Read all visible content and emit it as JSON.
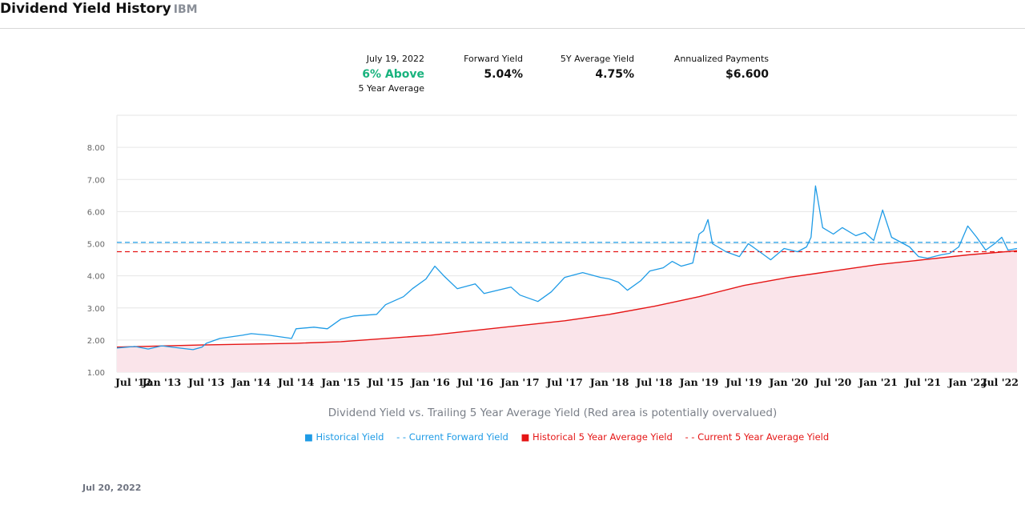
{
  "header": {
    "title": "Dividend Yield History",
    "ticker": "IBM"
  },
  "stats": {
    "date": "July 19, 2022",
    "vs_average": "6% Above",
    "vs_average_sub": "5 Year Average",
    "forward_yield_label": "Forward Yield",
    "forward_yield": "5.04%",
    "avg5y_label": "5Y Average Yield",
    "avg5y": "4.75%",
    "annualized_label": "Annualized Payments",
    "annualized": "$6.600"
  },
  "colors": {
    "historical": "#1e9be6",
    "average": "#e51515",
    "area": "#fae4ea",
    "positive": "#19b37e"
  },
  "chart_data": {
    "type": "line",
    "x_ticks": [
      "Jul '12",
      "Jan '13",
      "Jul '13",
      "Jan '14",
      "Jul '14",
      "Jan '15",
      "Jul '15",
      "Jan '16",
      "Jul '16",
      "Jan '17",
      "Jul '17",
      "Jan '18",
      "Jul '18",
      "Jan '19",
      "Jul '19",
      "Jan '20",
      "Jul '20",
      "Jan '21",
      "Jul '21",
      "Jan '22",
      "Jul '22"
    ],
    "y_ticks": [
      "1.00",
      "2.00",
      "3.00",
      "4.00",
      "5.00",
      "6.00",
      "7.00",
      "8.00"
    ],
    "ylim": [
      1,
      9
    ],
    "xlim": [
      2012.5,
      2022.55
    ],
    "series": [
      {
        "name": "Historical Yield",
        "style": "line",
        "color": "#1e9be6",
        "points": [
          [
            2012.5,
            1.75
          ],
          [
            2012.7,
            1.8
          ],
          [
            2012.85,
            1.72
          ],
          [
            2013.0,
            1.82
          ],
          [
            2013.2,
            1.75
          ],
          [
            2013.35,
            1.7
          ],
          [
            2013.45,
            1.78
          ],
          [
            2013.5,
            1.9
          ],
          [
            2013.65,
            2.05
          ],
          [
            2013.9,
            2.15
          ],
          [
            2014.0,
            2.2
          ],
          [
            2014.2,
            2.15
          ],
          [
            2014.45,
            2.05
          ],
          [
            2014.5,
            2.35
          ],
          [
            2014.7,
            2.4
          ],
          [
            2014.85,
            2.35
          ],
          [
            2015.0,
            2.65
          ],
          [
            2015.15,
            2.75
          ],
          [
            2015.4,
            2.8
          ],
          [
            2015.5,
            3.1
          ],
          [
            2015.7,
            3.35
          ],
          [
            2015.8,
            3.6
          ],
          [
            2015.95,
            3.9
          ],
          [
            2016.05,
            4.3
          ],
          [
            2016.15,
            4.0
          ],
          [
            2016.3,
            3.6
          ],
          [
            2016.5,
            3.75
          ],
          [
            2016.6,
            3.45
          ],
          [
            2016.9,
            3.65
          ],
          [
            2017.0,
            3.4
          ],
          [
            2017.2,
            3.2
          ],
          [
            2017.35,
            3.5
          ],
          [
            2017.5,
            3.95
          ],
          [
            2017.7,
            4.1
          ],
          [
            2017.9,
            3.95
          ],
          [
            2018.0,
            3.9
          ],
          [
            2018.1,
            3.8
          ],
          [
            2018.2,
            3.55
          ],
          [
            2018.35,
            3.85
          ],
          [
            2018.45,
            4.15
          ],
          [
            2018.6,
            4.25
          ],
          [
            2018.7,
            4.45
          ],
          [
            2018.8,
            4.3
          ],
          [
            2018.93,
            4.4
          ],
          [
            2019.0,
            5.3
          ],
          [
            2019.05,
            5.4
          ],
          [
            2019.1,
            5.75
          ],
          [
            2019.15,
            5.0
          ],
          [
            2019.3,
            4.75
          ],
          [
            2019.45,
            4.6
          ],
          [
            2019.55,
            5.0
          ],
          [
            2019.7,
            4.7
          ],
          [
            2019.8,
            4.5
          ],
          [
            2019.95,
            4.85
          ],
          [
            2020.1,
            4.75
          ],
          [
            2020.2,
            4.9
          ],
          [
            2020.25,
            5.2
          ],
          [
            2020.3,
            6.8
          ],
          [
            2020.38,
            5.5
          ],
          [
            2020.5,
            5.3
          ],
          [
            2020.6,
            5.5
          ],
          [
            2020.75,
            5.25
          ],
          [
            2020.85,
            5.35
          ],
          [
            2020.95,
            5.1
          ],
          [
            2021.05,
            6.05
          ],
          [
            2021.15,
            5.2
          ],
          [
            2021.25,
            5.05
          ],
          [
            2021.35,
            4.9
          ],
          [
            2021.45,
            4.6
          ],
          [
            2021.55,
            4.55
          ],
          [
            2021.7,
            4.65
          ],
          [
            2021.8,
            4.7
          ],
          [
            2021.9,
            4.9
          ],
          [
            2022.0,
            5.55
          ],
          [
            2022.1,
            5.2
          ],
          [
            2022.2,
            4.8
          ],
          [
            2022.3,
            5.0
          ],
          [
            2022.38,
            5.2
          ],
          [
            2022.45,
            4.8
          ],
          [
            2022.55,
            4.85
          ]
        ]
      },
      {
        "name": "Current Forward Yield",
        "style": "dashed",
        "color": "#1e9be6",
        "value": 5.04
      },
      {
        "name": "Historical 5 Year Average Yield",
        "style": "area",
        "color": "#e51515",
        "points": [
          [
            2012.5,
            1.78
          ],
          [
            2013.5,
            1.85
          ],
          [
            2014.5,
            1.9
          ],
          [
            2015.0,
            1.95
          ],
          [
            2015.5,
            2.05
          ],
          [
            2016.0,
            2.15
          ],
          [
            2016.5,
            2.3
          ],
          [
            2017.0,
            2.45
          ],
          [
            2017.5,
            2.6
          ],
          [
            2018.0,
            2.8
          ],
          [
            2018.5,
            3.05
          ],
          [
            2019.0,
            3.35
          ],
          [
            2019.5,
            3.7
          ],
          [
            2020.0,
            3.95
          ],
          [
            2020.5,
            4.15
          ],
          [
            2021.0,
            4.35
          ],
          [
            2021.5,
            4.5
          ],
          [
            2022.0,
            4.65
          ],
          [
            2022.55,
            4.78
          ]
        ]
      },
      {
        "name": "Current 5 Year Average Yield",
        "style": "dashed",
        "color": "#e51515",
        "value": 4.75
      }
    ],
    "caption": "Dividend Yield vs. Trailing 5 Year Average Yield (Red area is potentially overvalued)",
    "grid": true,
    "legend_position": "bottom"
  },
  "footer": {
    "date": "Jul 20, 2022"
  }
}
